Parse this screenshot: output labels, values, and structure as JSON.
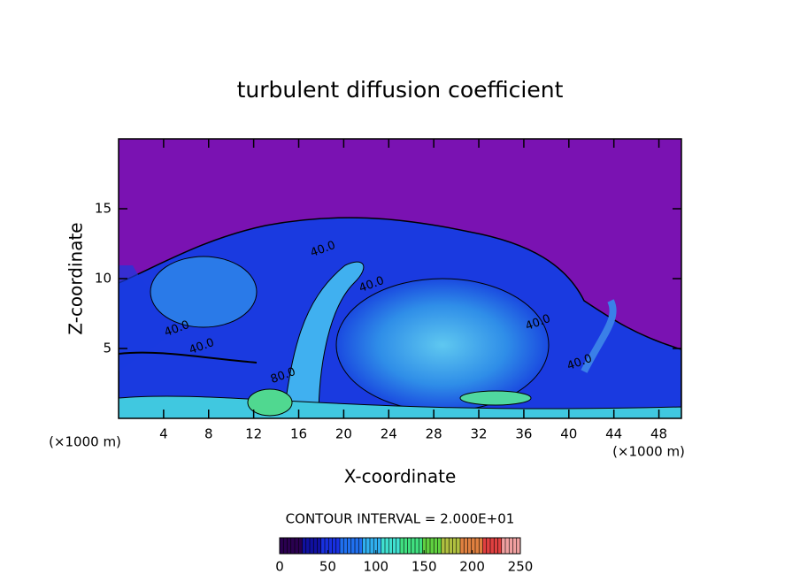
{
  "chart_data": {
    "type": "contour",
    "title": "turbulent diffusion coefficient",
    "x_label": "X-coordinate",
    "y_label": "Z-coordinate",
    "x_unit_label": "(×1000 m)",
    "y_unit_label": "(×1000 m)",
    "xlim": [
      0,
      50
    ],
    "xticks": [
      4,
      8,
      12,
      16,
      20,
      24,
      28,
      32,
      36,
      40,
      44,
      48
    ],
    "ylim": [
      0,
      20
    ],
    "yticks": [
      5,
      10,
      15
    ],
    "contour_interval_label": "CONTOUR INTERVAL = 2.000E+01",
    "contour_labels": [
      "40.0",
      "40.0",
      "40.0",
      "40.0",
      "40.0",
      "80.0",
      "40.0"
    ],
    "clim": [
      0,
      250
    ],
    "cticks": [
      0,
      50,
      100,
      150,
      200,
      250
    ],
    "colormap": [
      "#2a0050",
      "#1010a0",
      "#1830e0",
      "#2070f0",
      "#30b0f0",
      "#40e0d0",
      "#40e080",
      "#60d040",
      "#b0c040",
      "#e08040",
      "#e04040",
      "#f0a0a0"
    ]
  }
}
